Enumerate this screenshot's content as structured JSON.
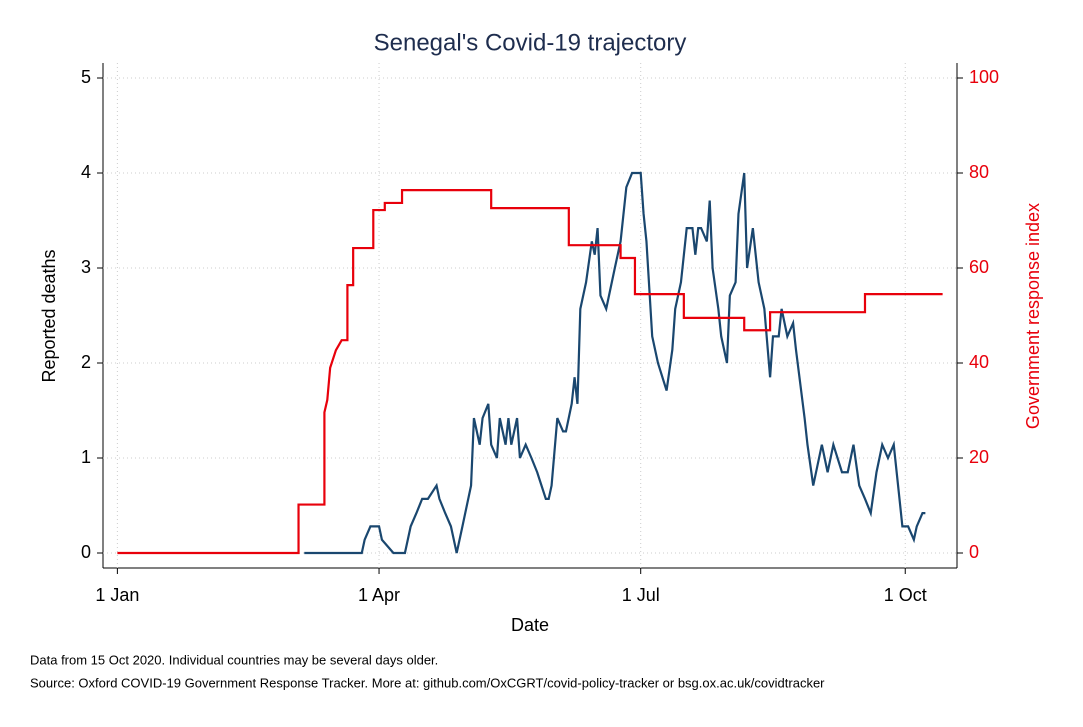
{
  "chart_data": {
    "type": "line",
    "title": "Senegal's Covid-19 trajectory",
    "x_label": "Date",
    "y_label": "Reported deaths",
    "y2_label": "Government response index",
    "notes": [
      "Data from 15 Oct 2020. Individual countries may be several days older.",
      "Source: Oxford COVID-19 Government Response Tracker. More at: github.com/OxCGRT/covid-policy-tracker or bsg.ox.ac.uk/covidtracker"
    ],
    "xlim": [
      -5,
      292
    ],
    "xticks": [
      {
        "value": 0,
        "label": "1 Jan"
      },
      {
        "value": 91,
        "label": "1 Apr"
      },
      {
        "value": 182,
        "label": "1 Jul"
      },
      {
        "value": 274,
        "label": "1 Oct"
      }
    ],
    "ylim": [
      0,
      5
    ],
    "yticks": [
      0,
      1,
      2,
      3,
      4,
      5
    ],
    "y2lim": [
      0,
      100
    ],
    "y2ticks": [
      0,
      20,
      40,
      60,
      80,
      100
    ],
    "y2_color": "#e8000b",
    "grid": true,
    "series": [
      {
        "color": "#1a476f",
        "x": [
          65,
          85,
          86,
          88,
          91,
          92,
          96,
          100,
          102,
          104,
          106,
          108,
          111,
          112,
          114,
          116,
          118,
          120,
          123,
          124,
          126,
          127,
          129,
          130,
          132,
          133,
          135,
          136,
          137,
          139,
          140,
          142,
          144,
          146,
          149,
          150,
          151,
          153,
          155,
          156,
          158,
          159,
          160,
          161,
          163,
          165,
          166,
          167,
          168,
          170,
          173,
          175,
          177,
          179,
          182,
          183,
          184,
          186,
          188,
          191,
          193,
          194,
          196,
          198,
          200,
          201,
          202,
          203,
          205,
          206,
          207,
          209,
          210,
          212,
          213,
          215,
          216,
          218,
          219,
          221,
          223,
          225,
          227,
          228,
          230,
          231,
          233,
          235,
          236,
          239,
          240,
          242,
          245,
          247,
          249,
          252,
          254,
          256,
          258,
          260,
          262,
          264,
          266,
          268,
          270,
          272,
          273,
          275,
          277,
          278,
          280,
          281
        ],
        "values": [
          0,
          0,
          0.14,
          0.28,
          0.28,
          0.14,
          0,
          0,
          0.28,
          0.42,
          0.57,
          0.57,
          0.71,
          0.57,
          0.42,
          0.28,
          0,
          0.28,
          0.71,
          1.42,
          1.14,
          1.42,
          1.57,
          1.14,
          1.0,
          1.42,
          1.14,
          1.42,
          1.14,
          1.42,
          1.0,
          1.14,
          1.0,
          0.85,
          0.57,
          0.57,
          0.71,
          1.42,
          1.28,
          1.28,
          1.57,
          1.85,
          1.57,
          2.57,
          2.85,
          3.28,
          3.14,
          3.42,
          2.71,
          2.57,
          3.0,
          3.28,
          3.85,
          4.0,
          4.0,
          3.57,
          3.28,
          2.28,
          2.0,
          1.71,
          2.14,
          2.57,
          2.85,
          3.42,
          3.42,
          3.14,
          3.42,
          3.42,
          3.28,
          3.71,
          3.0,
          2.57,
          2.28,
          2.0,
          2.71,
          2.85,
          3.57,
          4.0,
          3.0,
          3.42,
          2.85,
          2.57,
          1.85,
          2.28,
          2.28,
          2.57,
          2.28,
          2.42,
          2.14,
          1.42,
          1.14,
          0.71,
          1.14,
          0.85,
          1.14,
          0.85,
          0.85,
          1.14,
          0.71,
          0.57,
          0.42,
          0.85,
          1.14,
          1.0,
          1.14,
          0.57,
          0.28,
          0.28,
          0.14,
          0.28,
          0.42,
          0.42
        ]
      },
      {
        "color": "#e8000b",
        "axis": "y2",
        "x": [
          0,
          63,
          63,
          72,
          72,
          73,
          74,
          76,
          78,
          80,
          80,
          82,
          82,
          89,
          89,
          93,
          93,
          99,
          99,
          130,
          130,
          157,
          157,
          175,
          175,
          180,
          180,
          197,
          197,
          218,
          218,
          227,
          227,
          260,
          260,
          287
        ],
        "values": [
          0,
          0,
          10.2,
          10.2,
          29.6,
          32.2,
          39,
          42.7,
          44.8,
          44.8,
          56.4,
          56.4,
          64.2,
          64.2,
          72.2,
          72.2,
          73.7,
          73.7,
          76.4,
          76.4,
          72.6,
          72.6,
          64.8,
          64.8,
          62.1,
          62.1,
          54.5,
          54.5,
          49.5,
          49.5,
          46.9,
          46.9,
          50.7,
          50.7,
          54.5,
          54.5
        ]
      }
    ]
  }
}
